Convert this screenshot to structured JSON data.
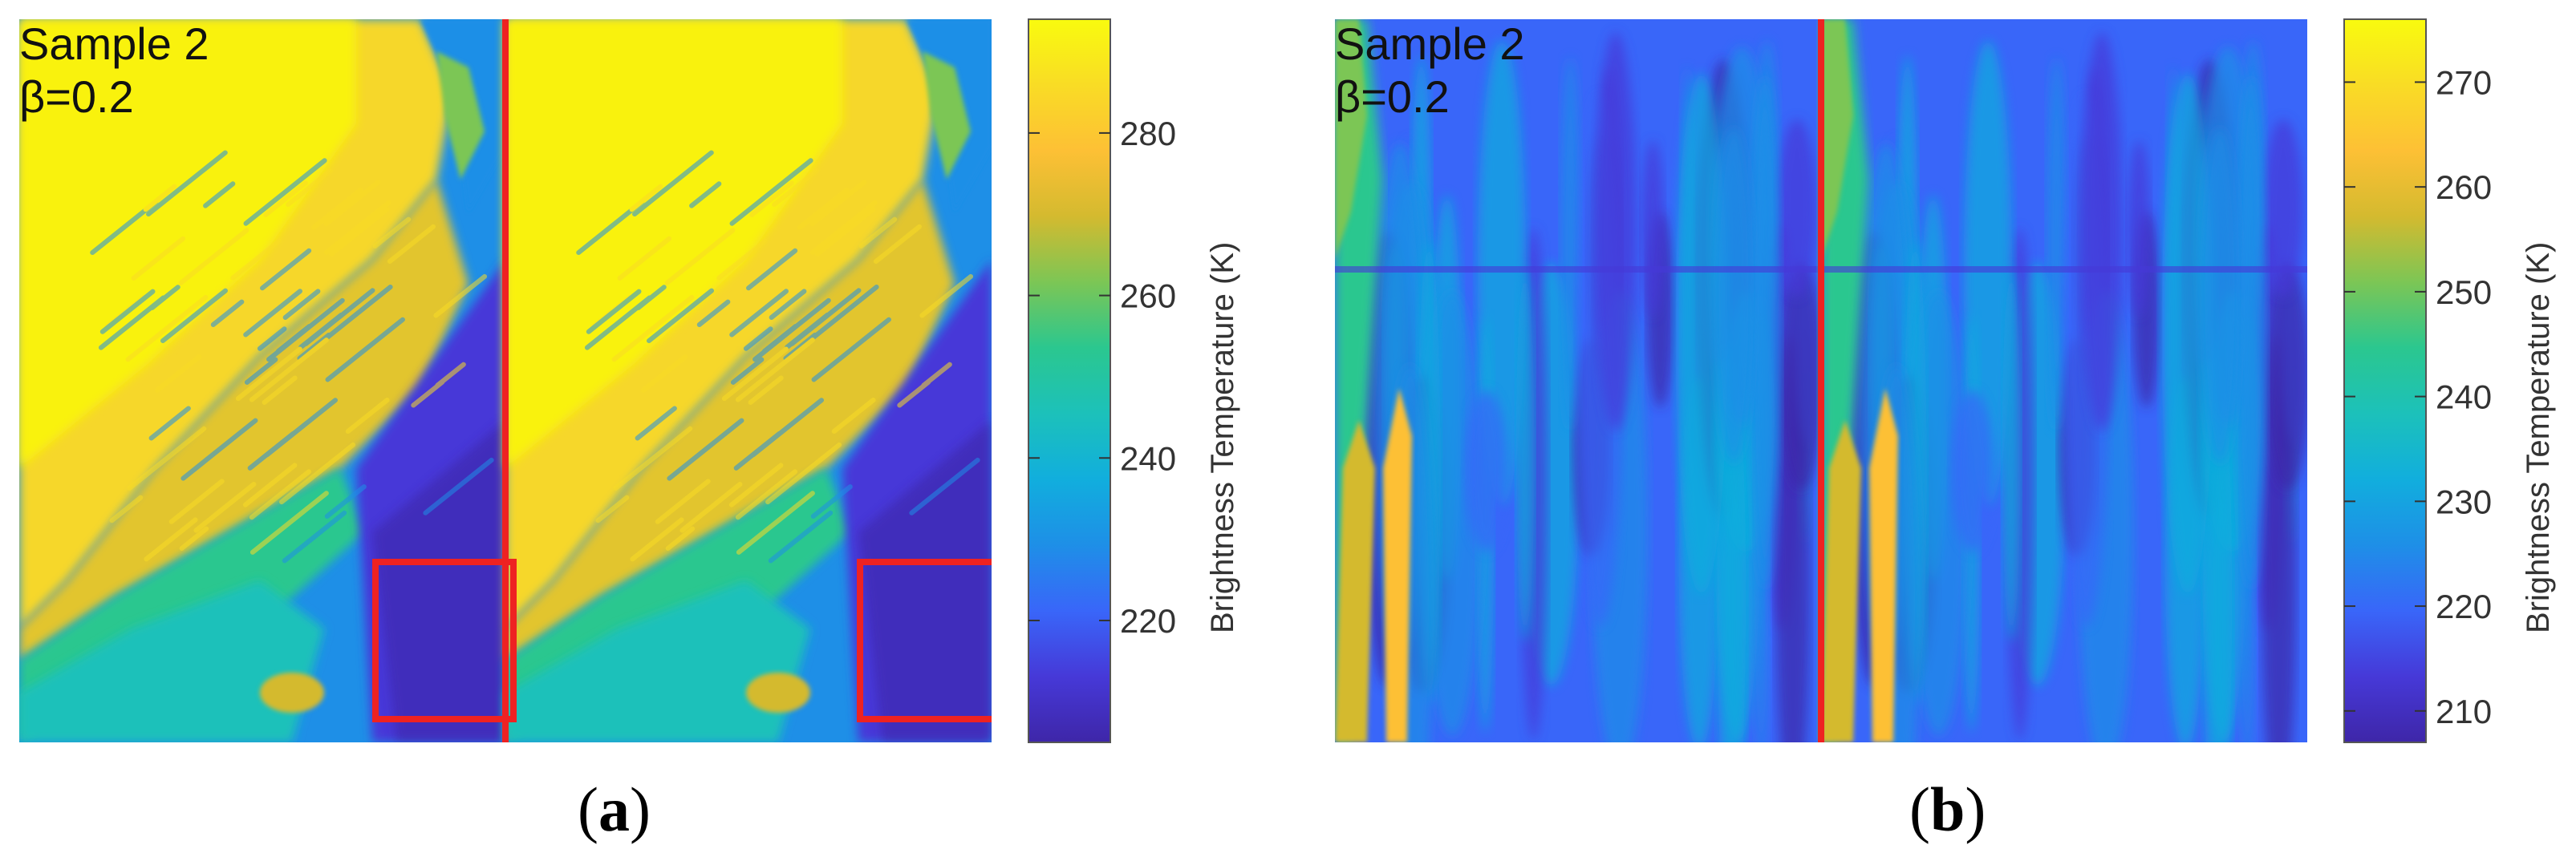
{
  "colors": {
    "colormap": [
      "#3e26a8",
      "#4639d8",
      "#3966f9",
      "#1e8fe7",
      "#11aedd",
      "#1cc1ba",
      "#2bc78f",
      "#7cc655",
      "#d4ba2f",
      "#fdc035",
      "#f9dc25",
      "#f9fb0e"
    ],
    "marker": "#ee2222"
  },
  "chart_data": [
    {
      "type": "heatmap",
      "panel_label": "a",
      "annotation": [
        "Sample 2",
        "β=0.2"
      ],
      "colorbar": {
        "label": "Brightness Temperature (K)",
        "ticks": [
          220,
          240,
          260,
          280
        ],
        "range": [
          205,
          294
        ]
      },
      "overlays": [
        "vertical-divider-line",
        "region-box-left-half",
        "region-box-right-half"
      ]
    },
    {
      "type": "heatmap",
      "panel_label": "b",
      "annotation": [
        "Sample 2",
        "β=0.2"
      ],
      "colorbar": {
        "label": "Brightness Temperature (K)",
        "ticks": [
          210,
          220,
          230,
          240,
          250,
          260,
          270
        ],
        "range": [
          207,
          276
        ]
      },
      "overlays": [
        "vertical-divider-line"
      ]
    }
  ]
}
